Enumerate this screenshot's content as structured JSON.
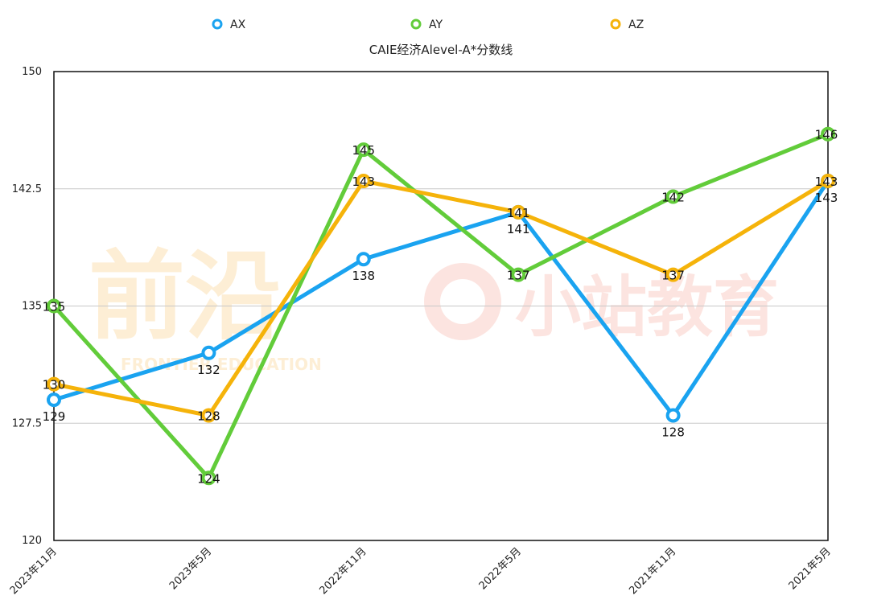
{
  "chart_data": {
    "type": "line",
    "title": "CAIE经济Alevel-A*分数线",
    "categories": [
      "2023年11月",
      "2023年5月",
      "2022年11月",
      "2022年5月",
      "2021年11月",
      "2021年5月"
    ],
    "series": [
      {
        "name": "AX",
        "color": "#1aa3f0",
        "values": [
          129,
          132,
          138,
          141,
          128,
          143
        ]
      },
      {
        "name": "AY",
        "color": "#62cc3a",
        "values": [
          135,
          124,
          145,
          137,
          142,
          146
        ]
      },
      {
        "name": "AZ",
        "color": "#f5b30a",
        "values": [
          130,
          128,
          143,
          141,
          137,
          143
        ]
      }
    ],
    "ylim": [
      120,
      150
    ],
    "yticks": [
      120,
      127.5,
      135,
      142.5,
      150
    ],
    "ytick_labels": [
      "120",
      "127.5",
      "135",
      "142.5",
      "150"
    ],
    "grid": true,
    "legend_position": "top"
  },
  "watermark": {
    "left_text": "前沿",
    "left_subtext": "FRONTIER EDUCATION",
    "right_text": "小站教育"
  }
}
